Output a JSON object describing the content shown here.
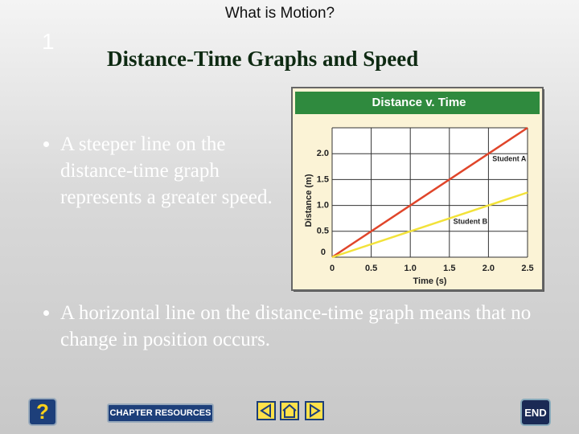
{
  "header": {
    "section": "What is Motion?",
    "number": "1",
    "title": "Distance-Time Graphs and Speed"
  },
  "bullets": [
    "A steeper line on the distance-time graph represents a greater speed.",
    "A horizontal line on the distance-time graph means that no change in position occurs."
  ],
  "chart_data": {
    "type": "line",
    "title": "Distance v. Time",
    "x_label": "Time (s)",
    "y_label": "Distance (m)",
    "xlim": [
      0,
      2.5
    ],
    "ylim": [
      0,
      2.5
    ],
    "xticks": [
      0,
      0.5,
      {
        "value": 1,
        "label": "1.0"
      },
      1.5,
      {
        "value": 2,
        "label": "2.0"
      },
      2.5
    ],
    "yticks": [
      0,
      0.5,
      {
        "value": 1,
        "label": "1.0"
      },
      1.5,
      {
        "value": 2,
        "label": "2.0"
      }
    ],
    "grid": true,
    "series": [
      {
        "name": "Student A",
        "color": "#e0452a",
        "x": [
          0,
          2.5
        ],
        "values": [
          0,
          2.5
        ]
      },
      {
        "name": "Student B",
        "color": "#f2e23a",
        "x": [
          0,
          2.5
        ],
        "values": [
          0,
          1.25
        ]
      }
    ]
  },
  "footer": {
    "help": "?",
    "resources": "CHAPTER RESOURCES",
    "end": "END"
  }
}
